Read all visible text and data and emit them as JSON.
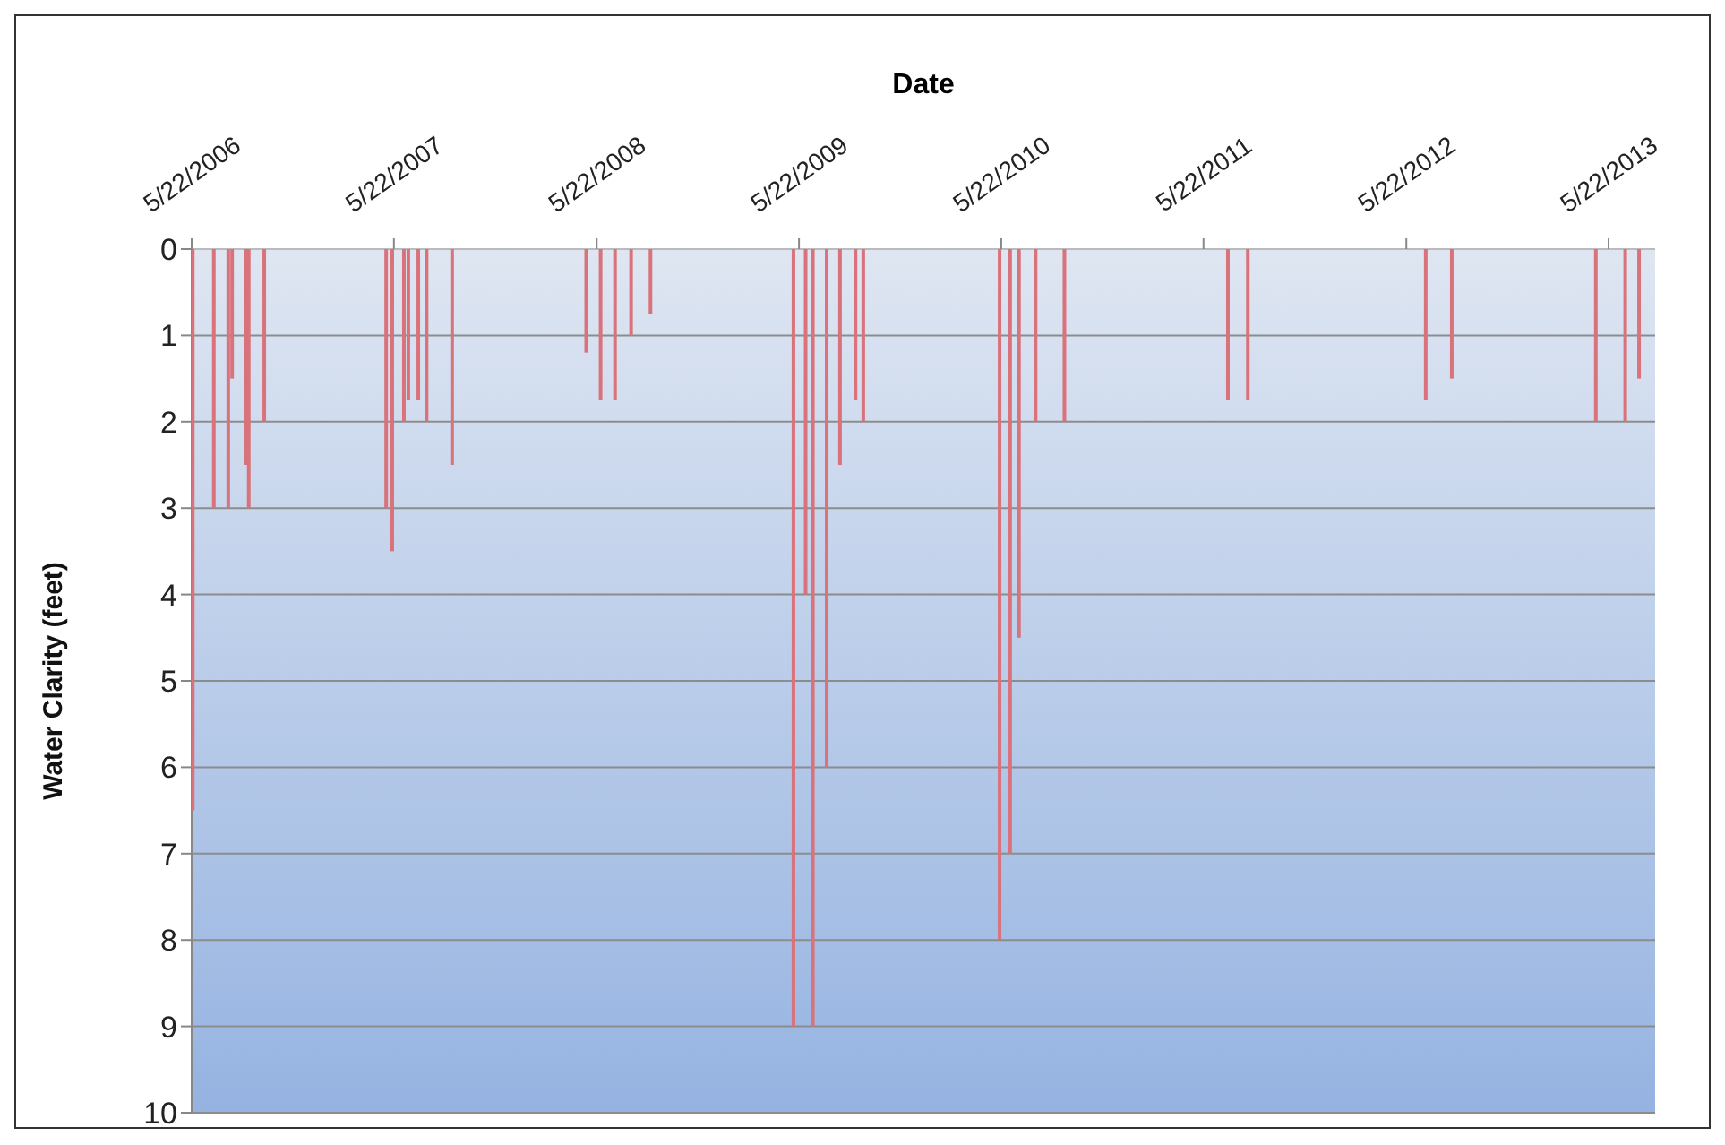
{
  "chart_data": {
    "type": "bar",
    "xlabel": "Date",
    "ylabel": "Water Clarity (feet)",
    "x": [
      "2006-05-24",
      "2006-07-01",
      "2006-07-27",
      "2006-08-03",
      "2006-08-27",
      "2006-09-02",
      "2006-09-30",
      "2007-05-08",
      "2007-05-19",
      "2007-06-09",
      "2007-06-17",
      "2007-07-05",
      "2007-07-20",
      "2007-09-04",
      "2008-05-03",
      "2008-05-29",
      "2008-06-24",
      "2008-07-23",
      "2008-08-27",
      "2009-05-12",
      "2009-06-03",
      "2009-06-16",
      "2009-07-11",
      "2009-08-04",
      "2009-09-01",
      "2009-09-15",
      "2010-05-19",
      "2010-06-07",
      "2010-06-23",
      "2010-07-23",
      "2010-09-13",
      "2011-07-05",
      "2011-08-10",
      "2012-06-26",
      "2012-08-12",
      "2013-04-29",
      "2013-06-21",
      "2013-07-16"
    ],
    "values": [
      6.5,
      3,
      3,
      1.5,
      2.5,
      3,
      2,
      3,
      3.5,
      2,
      1.75,
      1.75,
      2,
      2.5,
      1.2,
      1.75,
      1.75,
      1,
      0.75,
      9,
      4,
      9,
      6,
      2.5,
      1.75,
      2,
      8,
      7,
      4.5,
      2,
      2,
      1.75,
      1.75,
      1.75,
      1.5,
      2,
      2,
      1.5
    ],
    "color": "#d9727a",
    "xlim": [
      "2006-05-22",
      "2013-08-14"
    ],
    "xticks": [
      {
        "value": "2006-05-22",
        "label": "5/22/2006"
      },
      {
        "value": "2007-05-22",
        "label": "5/22/2007"
      },
      {
        "value": "2008-05-22",
        "label": "5/22/2008"
      },
      {
        "value": "2009-05-22",
        "label": "5/22/2009"
      },
      {
        "value": "2010-05-22",
        "label": "5/22/2010"
      },
      {
        "value": "2011-05-22",
        "label": "5/22/2011"
      },
      {
        "value": "2012-05-22",
        "label": "5/22/2012"
      },
      {
        "value": "2013-05-22",
        "label": "5/22/2013"
      }
    ],
    "ylim": [
      10,
      0
    ],
    "yticks": [
      0,
      1,
      2,
      3,
      4,
      5,
      6,
      7,
      8,
      9,
      10
    ],
    "grid": "y"
  }
}
